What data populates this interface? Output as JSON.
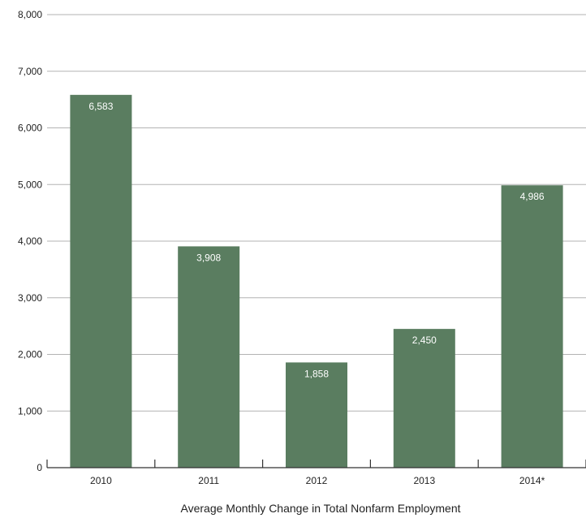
{
  "chart_data": {
    "type": "bar",
    "categories": [
      "2010",
      "2011",
      "2012",
      "2013",
      "2014*"
    ],
    "values": [
      6583,
      3908,
      1858,
      2450,
      4986
    ],
    "data_labels": [
      "6,583",
      "3,908",
      "1,858",
      "2,450",
      "4,986"
    ],
    "title": "",
    "xlabel": "Average Monthly Change in Total Nonfarm Employment",
    "ylabel": "",
    "ylim": [
      0,
      8000
    ],
    "yticks": [
      0,
      1000,
      2000,
      3000,
      4000,
      5000,
      6000,
      7000,
      8000
    ],
    "ytick_labels": [
      "0",
      "1,000",
      "2,000",
      "3,000",
      "4,000",
      "5,000",
      "6,000",
      "7,000",
      "8,000"
    ],
    "grid": true,
    "colors": {
      "bar": "#5a7d60",
      "grid": "#b3b3b3",
      "axis": "#333333"
    }
  }
}
